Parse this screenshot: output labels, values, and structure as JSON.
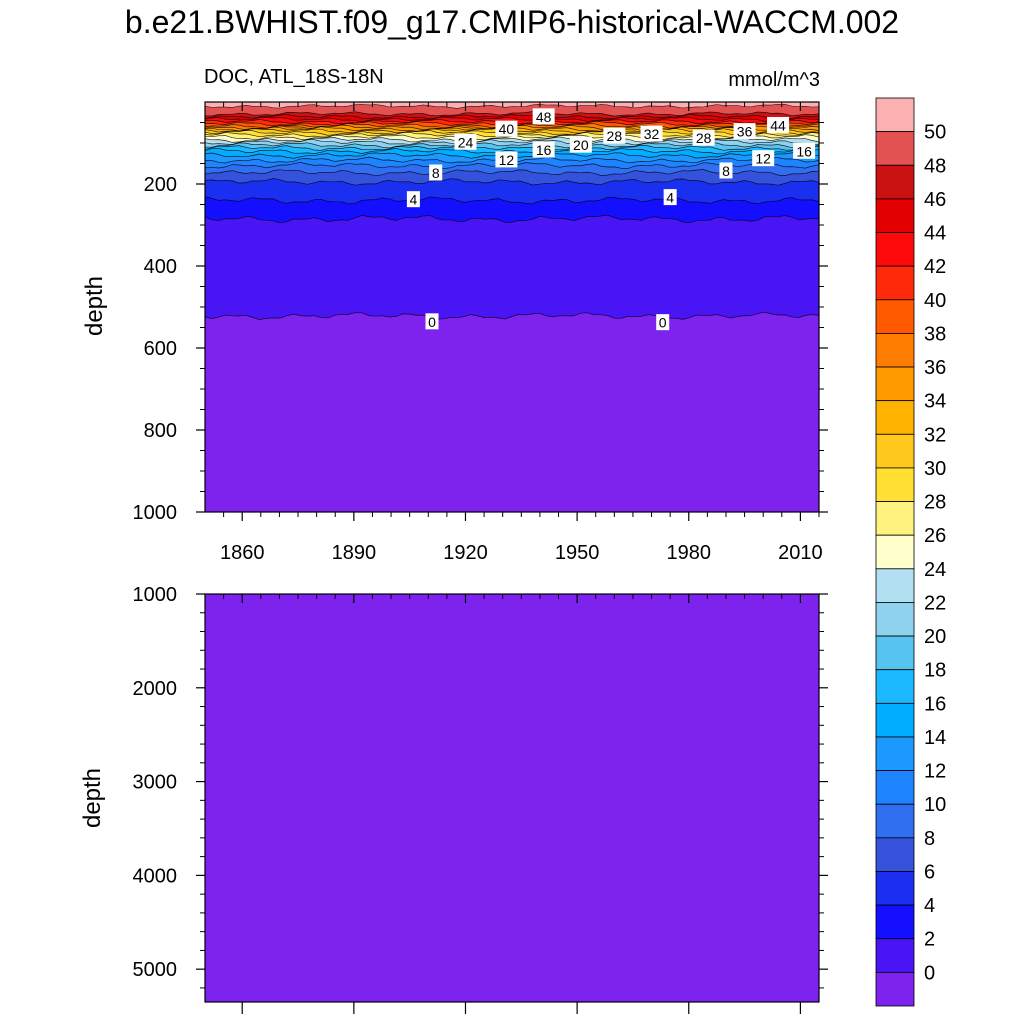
{
  "title": "b.e21.BWHIST.f09_g17.CMIP6-historical-WACCM.002",
  "chart_data": [
    {
      "type": "heatmap",
      "panel": "upper",
      "subtitle_left": "DOC, ATL_18S-18N",
      "subtitle_right": "mmol/m^3",
      "ylabel": "depth",
      "xlim": [
        1850,
        2015
      ],
      "ylim": [
        1000,
        0
      ],
      "y_reversed": true,
      "x_ticks": [
        "1860",
        "1890",
        "1920",
        "1950",
        "1980",
        "2010"
      ],
      "y_ticks": [
        "200",
        "400",
        "600",
        "800",
        "1000"
      ],
      "contour_depths": [
        {
          "level": 50,
          "depth": 10
        },
        {
          "level": 48,
          "depth": 29
        },
        {
          "level": 46,
          "depth": 36
        },
        {
          "level": 44,
          "depth": 42
        },
        {
          "level": 42,
          "depth": 48
        },
        {
          "level": 40,
          "depth": 53
        },
        {
          "level": 38,
          "depth": 58
        },
        {
          "level": 36,
          "depth": 62
        },
        {
          "level": 34,
          "depth": 66
        },
        {
          "level": 32,
          "depth": 70
        },
        {
          "level": 30,
          "depth": 75
        },
        {
          "level": 28,
          "depth": 80
        },
        {
          "level": 26,
          "depth": 86
        },
        {
          "level": 24,
          "depth": 92
        },
        {
          "level": 22,
          "depth": 98
        },
        {
          "level": 20,
          "depth": 105
        },
        {
          "level": 18,
          "depth": 112
        },
        {
          "level": 16,
          "depth": 120
        },
        {
          "level": 14,
          "depth": 130
        },
        {
          "level": 12,
          "depth": 142
        },
        {
          "level": 10,
          "depth": 155
        },
        {
          "level": 8,
          "depth": 172
        },
        {
          "level": 6,
          "depth": 195
        },
        {
          "level": 4,
          "depth": 240
        },
        {
          "level": 2,
          "depth": 285
        },
        {
          "level": 0,
          "depth": 522
        }
      ],
      "contour_labels": [
        {
          "text": "48",
          "x": 1941,
          "depth": 35
        },
        {
          "text": "40",
          "x": 1931,
          "depth": 65
        },
        {
          "text": "44",
          "x": 2004,
          "depth": 56
        },
        {
          "text": "36",
          "x": 1995,
          "depth": 71
        },
        {
          "text": "32",
          "x": 1970,
          "depth": 77
        },
        {
          "text": "28",
          "x": 1960,
          "depth": 82
        },
        {
          "text": "28",
          "x": 1984,
          "depth": 87
        },
        {
          "text": "24",
          "x": 1920,
          "depth": 97
        },
        {
          "text": "20",
          "x": 1951,
          "depth": 104
        },
        {
          "text": "16",
          "x": 1941,
          "depth": 116
        },
        {
          "text": "16",
          "x": 2011,
          "depth": 119
        },
        {
          "text": "12",
          "x": 1931,
          "depth": 140
        },
        {
          "text": "12",
          "x": 2000,
          "depth": 137
        },
        {
          "text": "8",
          "x": 1912,
          "depth": 172
        },
        {
          "text": "8",
          "x": 1990,
          "depth": 167
        },
        {
          "text": "4",
          "x": 1906,
          "depth": 237
        },
        {
          "text": "4",
          "x": 1975,
          "depth": 232
        },
        {
          "text": "0",
          "x": 1911,
          "depth": 535
        },
        {
          "text": "0",
          "x": 1973,
          "depth": 537
        }
      ]
    },
    {
      "type": "heatmap",
      "panel": "lower",
      "ylabel": "depth",
      "xlim": [
        1850,
        2015
      ],
      "ylim": [
        1000,
        5350
      ],
      "y_reversed": true,
      "y_ticks": [
        "1000",
        "2000",
        "3000",
        "4000",
        "5000"
      ],
      "fill_level": "<0"
    }
  ],
  "colorbar": {
    "labels": [
      "50",
      "48",
      "46",
      "44",
      "42",
      "40",
      "38",
      "36",
      "34",
      "32",
      "30",
      "28",
      "26",
      "24",
      "22",
      "20",
      "18",
      "16",
      "14",
      "12",
      "10",
      "8",
      "6",
      "4",
      "2",
      "0"
    ],
    "colors": [
      "#fbb1b1",
      "#e35252",
      "#cb1212",
      "#e20000",
      "#ff0a0a",
      "#ff2a0a",
      "#ff5a00",
      "#ff7d00",
      "#ff9a00",
      "#ffb300",
      "#ffc81c",
      "#ffe033",
      "#fff27f",
      "#ffffcc",
      "#b3dff2",
      "#8fd2ee",
      "#57c3f0",
      "#1cb9ff",
      "#00adff",
      "#1c98ff",
      "#1e83ff",
      "#306ff0",
      "#3552dc",
      "#1a2ff0",
      "#150fff",
      "#4a15f5",
      "#7d23ed"
    ]
  }
}
